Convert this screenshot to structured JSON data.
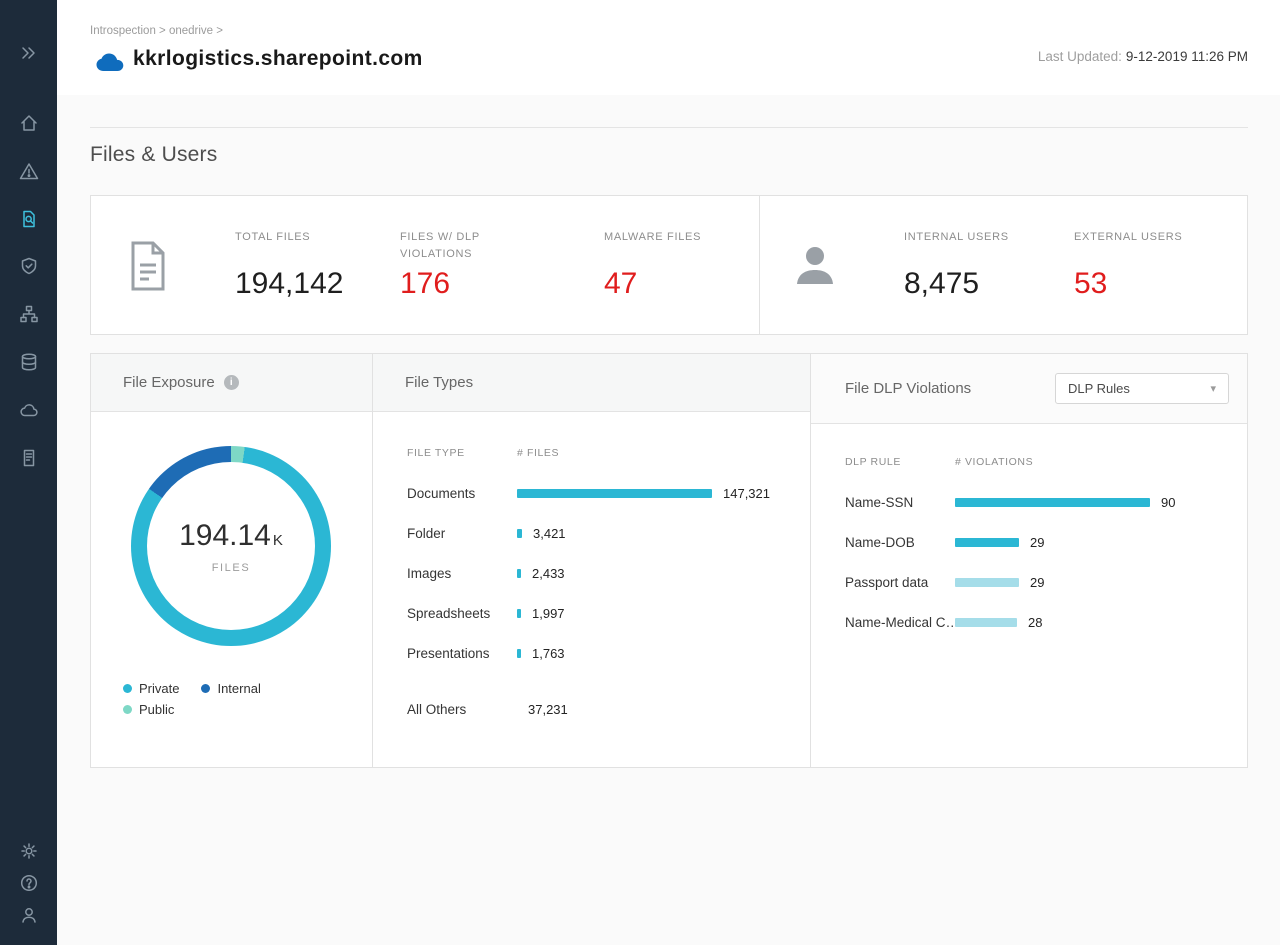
{
  "colors": {
    "accent": "#2bb7d4",
    "danger": "#e01d1d",
    "internal_blue": "#1e6cb5",
    "public_teal": "#7ed8c6",
    "light_bar": "#a5dde9",
    "sidebar_bg": "#1d2b3a"
  },
  "sidebar": {
    "icons": [
      "expand",
      "home",
      "alerts",
      "file-inspection",
      "shield",
      "hierarchy",
      "database",
      "cloud",
      "report"
    ],
    "bottom_icons": [
      "settings",
      "help",
      "user"
    ],
    "active": "file-inspection"
  },
  "header": {
    "breadcrumb": "Introspection > onedrive >",
    "title": "kkrlogistics.sharepoint.com",
    "last_updated_label": "Last Updated:",
    "last_updated_value": "9-12-2019 11:26 PM"
  },
  "section_title": "Files & Users",
  "stats": {
    "files": [
      {
        "label": "TOTAL FILES",
        "value": "194,142",
        "red": false
      },
      {
        "label": "FILES W/ DLP VIOLATIONS",
        "value": "176",
        "red": true
      },
      {
        "label": "MALWARE FILES",
        "value": "47",
        "red": true
      }
    ],
    "users": [
      {
        "label": "INTERNAL USERS",
        "value": "8,475",
        "red": false
      },
      {
        "label": "EXTERNAL USERS",
        "value": "53",
        "red": true
      }
    ]
  },
  "panels": {
    "file_exposure": {
      "title": "File Exposure",
      "center_value": "194.14",
      "center_suffix": "K",
      "center_label": "FILES",
      "segments": [
        {
          "label": "Public",
          "color": "#7ed8c6",
          "pct": 2.2
        },
        {
          "label": "Private",
          "color": "#2bb7d4",
          "pct": 82.5
        },
        {
          "label": "Internal",
          "color": "#1e6cb5",
          "pct": 15.3
        }
      ],
      "legend": [
        {
          "label": "Private",
          "color": "#2bb7d4"
        },
        {
          "label": "Internal",
          "color": "#1e6cb5"
        },
        {
          "label": "Public",
          "color": "#7ed8c6"
        }
      ]
    },
    "file_types": {
      "title": "File Types",
      "col1": "FILE TYPE",
      "col2": "# FILES",
      "rows": [
        {
          "label": "Documents",
          "value": "147,321",
          "bar": 195,
          "color": "#2bb7d4"
        },
        {
          "label": "Folder",
          "value": "3,421",
          "bar": 5,
          "color": "#2bb7d4"
        },
        {
          "label": "Images",
          "value": "2,433",
          "bar": 4,
          "color": "#2bb7d4"
        },
        {
          "label": "Spreadsheets",
          "value": "1,997",
          "bar": 4,
          "color": "#2bb7d4"
        },
        {
          "label": "Presentations",
          "value": "1,763",
          "bar": 4,
          "color": "#2bb7d4"
        },
        {
          "label": "All Others",
          "value": "37,231",
          "bar": 0,
          "color": "#2bb7d4"
        }
      ]
    },
    "dlp": {
      "title": "File DLP Violations",
      "dropdown_label": "DLP Rules",
      "col1": "DLP RULE",
      "col2": "# VIOLATIONS",
      "rows": [
        {
          "label": "Name-SSN",
          "value": "90",
          "bar": 195,
          "color": "#2bb7d4"
        },
        {
          "label": "Name-DOB",
          "value": "29",
          "bar": 64,
          "color": "#2bb7d4"
        },
        {
          "label": "Passport data",
          "value": "29",
          "bar": 64,
          "color": "#a5dde9"
        },
        {
          "label": "Name-Medical C…",
          "value": "28",
          "bar": 62,
          "color": "#a5dde9"
        }
      ]
    }
  },
  "chart_data": [
    {
      "type": "pie",
      "title": "File Exposure",
      "labels": [
        "Private",
        "Internal",
        "Public"
      ],
      "values_pct": [
        82.5,
        15.3,
        2.2
      ],
      "center_total": "194.14K FILES"
    },
    {
      "type": "bar",
      "title": "File Types",
      "categories": [
        "Documents",
        "Folder",
        "Images",
        "Spreadsheets",
        "Presentations",
        "All Others"
      ],
      "values": [
        147321,
        3421,
        2433,
        1997,
        1763,
        37231
      ]
    },
    {
      "type": "bar",
      "title": "File DLP Violations",
      "categories": [
        "Name-SSN",
        "Name-DOB",
        "Passport data",
        "Name-Medical C…"
      ],
      "values": [
        90,
        29,
        29,
        28
      ]
    }
  ]
}
